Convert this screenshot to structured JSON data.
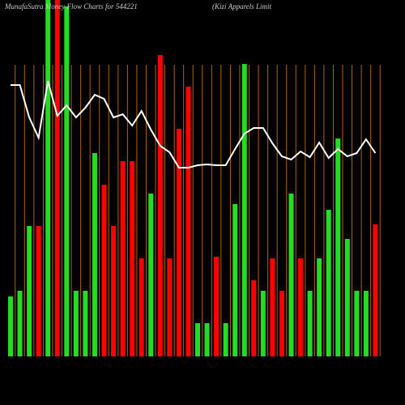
{
  "chart_data": {
    "type": "bar",
    "title": "MunafaSutra  Money Flow  Charts for 544221",
    "subtitle": "(Kizi   Apparels Limit",
    "categories": [
      null,
      null,
      null,
      null,
      null,
      null,
      null,
      null,
      null,
      null,
      null,
      null,
      null,
      null,
      null,
      null,
      null,
      null,
      null,
      null,
      null,
      null,
      null,
      null,
      null,
      null,
      null,
      null,
      null,
      null,
      null,
      null,
      null,
      null,
      null,
      null,
      null,
      null,
      null,
      null
    ],
    "values": [
      74,
      81,
      161,
      161,
      440,
      440,
      432,
      81,
      81,
      251,
      212,
      161,
      241,
      241,
      121,
      201,
      372,
      121,
      281,
      333,
      41,
      41,
      123,
      41,
      188,
      361,
      94,
      81,
      121,
      81,
      201,
      121,
      81,
      121,
      181,
      269,
      145,
      81,
      81,
      163
    ],
    "bar_colors": [
      "#22dd22",
      "#22dd22",
      "#22dd22",
      "#ff0000",
      "#22dd22",
      "#ff0000",
      "#22dd22",
      "#22dd22",
      "#22dd22",
      "#22dd22",
      "#ff0000",
      "#ff0000",
      "#ff0000",
      "#ff0000",
      "#ff0000",
      "#22dd22",
      "#ff0000",
      "#ff0000",
      "#ff0000",
      "#ff0000",
      "#22dd22",
      "#22dd22",
      "#ff0000",
      "#22dd22",
      "#22dd22",
      "#22dd22",
      "#ff0000",
      "#22dd22",
      "#ff0000",
      "#ff0000",
      "#22dd22",
      "#ff0000",
      "#22dd22",
      "#22dd22",
      "#22dd22",
      "#22dd22",
      "#22dd22",
      "#22dd22",
      "#22dd22",
      "#ff0000"
    ],
    "line": {
      "color": "#ffffff",
      "values": [
        335,
        335,
        295,
        270,
        340,
        297,
        310,
        295,
        307,
        323,
        318,
        295,
        299,
        285,
        303,
        280,
        260,
        252,
        233,
        233,
        236,
        237,
        236,
        236,
        256,
        275,
        282,
        282,
        263,
        247,
        243,
        253,
        246,
        264,
        245,
        256,
        247,
        251,
        268,
        251
      ]
    },
    "ylim": [
      0,
      440
    ],
    "separator_color": "#b36200"
  }
}
